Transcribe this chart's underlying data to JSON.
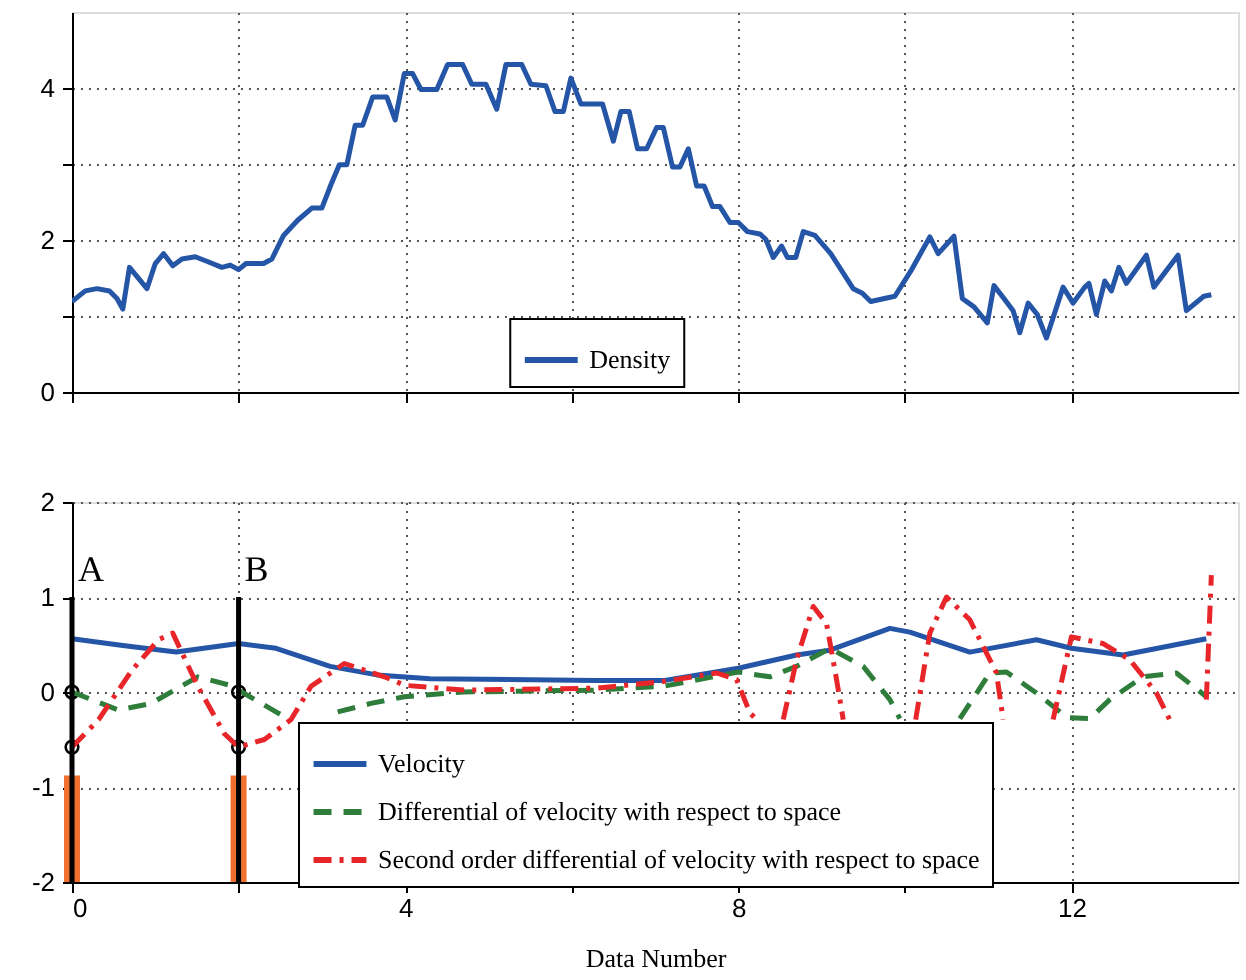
{
  "chart_data": [
    {
      "type": "line",
      "xlim": [
        0,
        14
      ],
      "ylim": [
        0,
        5
      ],
      "xticks": [
        {
          "value": 0,
          "label": null
        },
        {
          "value": 2,
          "label": null
        },
        {
          "value": 4,
          "label": null
        },
        {
          "value": 6,
          "label": null
        },
        {
          "value": 8,
          "label": null
        },
        {
          "value": 10,
          "label": null
        },
        {
          "value": 12,
          "label": null
        }
      ],
      "yticks": [
        0,
        {
          "value": 1,
          "label": null
        },
        2,
        {
          "value": 3,
          "label": null
        },
        4
      ],
      "tick_labels": "y",
      "grid": true,
      "legend": "bottom",
      "series": [
        {
          "name": "Density",
          "color": "#2455a6",
          "line_style": "solid",
          "x": [
            0,
            0.16,
            0.3,
            0.45,
            0.54,
            0.61,
            0.69,
            0.9,
            1.0,
            1.1,
            1.21,
            1.32,
            1.48,
            1.64,
            1.8,
            1.9,
            2.0,
            2.09,
            2.3,
            2.4,
            2.54,
            2.71,
            2.88,
            3.0,
            3.11,
            3.21,
            3.3,
            3.4,
            3.49,
            3.61,
            3.78,
            3.88,
            3.99,
            4.09,
            4.19,
            4.38,
            4.51,
            4.69,
            4.8,
            4.97,
            5.1,
            5.21,
            5.4,
            5.51,
            5.69,
            5.8,
            5.9,
            5.99,
            6.11,
            6.37,
            6.5,
            6.59,
            6.69,
            6.79,
            6.9,
            7.02,
            7.1,
            7.21,
            7.3,
            7.4,
            7.5,
            7.59,
            7.69,
            7.78,
            7.9,
            8.0,
            8.11,
            8.26,
            8.33,
            8.42,
            8.52,
            8.59,
            8.69,
            8.78,
            8.92,
            9.11,
            9.38,
            9.49,
            9.59,
            9.88,
            10.07,
            10.3,
            10.4,
            10.59,
            10.69,
            10.83,
            10.99,
            11.07,
            11.19,
            11.3,
            11.38,
            11.48,
            11.59,
            11.7,
            11.9,
            12.02,
            12.16,
            12.21,
            12.3,
            12.4,
            12.48,
            12.57,
            12.66,
            12.9,
            12.99,
            13.28,
            13.38,
            13.59,
            13.68
          ],
          "values": [
            1.19,
            1.33,
            1.36,
            1.33,
            1.23,
            1.09,
            1.64,
            1.36,
            1.69,
            1.82,
            1.66,
            1.75,
            1.78,
            1.71,
            1.64,
            1.67,
            1.61,
            1.69,
            1.69,
            1.75,
            2.06,
            2.26,
            2.42,
            2.42,
            2.73,
            2.99,
            2.99,
            3.51,
            3.51,
            3.88,
            3.88,
            3.58,
            4.19,
            4.19,
            3.98,
            3.98,
            4.31,
            4.31,
            4.05,
            4.05,
            3.72,
            4.31,
            4.31,
            4.05,
            4.03,
            3.69,
            3.69,
            4.13,
            3.79,
            3.79,
            3.3,
            3.69,
            3.69,
            3.2,
            3.2,
            3.48,
            3.48,
            2.96,
            2.96,
            3.2,
            2.71,
            2.71,
            2.44,
            2.44,
            2.23,
            2.23,
            2.11,
            2.08,
            2.01,
            1.77,
            1.92,
            1.77,
            1.77,
            2.11,
            2.06,
            1.82,
            1.36,
            1.3,
            1.19,
            1.26,
            1.59,
            2.04,
            1.82,
            2.05,
            1.23,
            1.12,
            0.91,
            1.4,
            1.23,
            1.07,
            0.78,
            1.17,
            1.02,
            0.71,
            1.38,
            1.17,
            1.38,
            1.43,
            1.02,
            1.46,
            1.33,
            1.64,
            1.43,
            1.8,
            1.38,
            1.8,
            1.07,
            1.26,
            1.28
          ]
        }
      ]
    },
    {
      "type": "line",
      "xlim": [
        0,
        14
      ],
      "ylim": [
        -2,
        2
      ],
      "xlabel": "Data Number",
      "xticks": [
        0,
        {
          "value": 2,
          "label": null
        },
        4,
        {
          "value": 6,
          "label": null
        },
        8,
        {
          "value": 10,
          "label": null
        },
        12
      ],
      "yticks": [
        -2,
        -1,
        0,
        1,
        2
      ],
      "grid": true,
      "legend": "bottom right",
      "ref_lines": [
        {
          "axis": "x",
          "value": 0,
          "label": "A",
          "color": "#000000",
          "line_style": "solid"
        },
        {
          "axis": "x",
          "value": 2,
          "label": "B",
          "color": "#000000",
          "line_style": "solid"
        }
      ],
      "series": [
        {
          "type": "bar",
          "color": "#f07030",
          "x": [
            0,
            2
          ],
          "values": [
            1.12,
            1.12
          ],
          "base": [
            -2,
            -2
          ]
        },
        {
          "name": "Velocity",
          "type": "line",
          "color": "#2455a6",
          "line_style": "solid",
          "x": [
            0,
            0.61,
            1.25,
            2,
            2.45,
            3.1,
            3.66,
            4.3,
            6.3,
            7.1,
            8,
            8.7,
            9.1,
            9.82,
            10.06,
            10.78,
            11.58,
            12,
            12.62,
            13.62
          ],
          "values": [
            0.56,
            0.49,
            0.42,
            0.51,
            0.46,
            0.27,
            0.18,
            0.14,
            0.12,
            0.12,
            0.25,
            0.39,
            0.44,
            0.67,
            0.63,
            0.42,
            0.55,
            0.46,
            0.39,
            0.56
          ]
        },
        {
          "name": "Differential of velocity with respect to space",
          "type": "line",
          "color": "#2e7d3a",
          "line_style": "dashed",
          "x": [
            0,
            0.56,
            0.95,
            1.51,
            1.9,
            2.47,
            2.63,
            2.9,
            3.19,
            3.59,
            3.99,
            4.7,
            6.3,
            7.1,
            8,
            8.38,
            8.7,
            9.1,
            9.5,
            9.82,
            9.94,
            10.3,
            10.66,
            11.02,
            11.22,
            11.58,
            11.95,
            12.22,
            12.46,
            12.86,
            13.26,
            13.62
          ],
          "values": [
            0,
            -0.19,
            -0.12,
            0.16,
            0.07,
            -0.22,
            -0.29,
            null,
            -0.21,
            -0.12,
            -0.05,
            0,
            0.02,
            0.06,
            0.21,
            0.16,
            0.27,
            0.46,
            0.27,
            -0.08,
            -0.28,
            null,
            -0.28,
            0.2,
            0.21,
            -0.01,
            -0.27,
            -0.28,
            -0.08,
            0.16,
            0.2,
            -0.05
          ]
        },
        {
          "name": "Second order differential of velocity with respect to space",
          "type": "line",
          "color": "#e8262a",
          "line_style": "dashdot",
          "x": [
            0,
            0.32,
            0.72,
            1.04,
            1.21,
            1.51,
            1.83,
            2,
            2.31,
            2.63,
            2.87,
            3.27,
            3.75,
            4,
            4.7,
            6.3,
            7.1,
            7.74,
            7.98,
            8.14,
            8.22,
            8.4,
            8.54,
            8.7,
            8.9,
            9.06,
            9.18,
            9.26,
            9.7,
            10.13,
            10.3,
            10.5,
            10.78,
            11.1,
            11.18,
            11.5,
            11.78,
            12,
            12.38,
            12.7,
            13.02,
            13.18,
            13.4,
            13.62,
            13.68
          ],
          "values": [
            -0.58,
            -0.29,
            0.23,
            0.55,
            0.62,
            0.06,
            -0.44,
            -0.58,
            -0.5,
            -0.29,
            0.06,
            0.3,
            0.16,
            0.07,
            0.02,
            0.04,
            0.11,
            0.2,
            0.13,
            -0.22,
            -0.29,
            null,
            -0.29,
            0.34,
            0.9,
            0.72,
            0.13,
            -0.29,
            null,
            -0.29,
            0.62,
            1.0,
            0.76,
            0.2,
            -0.29,
            null,
            -0.29,
            0.58,
            0.51,
            0.34,
            -0.01,
            -0.29,
            null,
            -0.08,
            1.23
          ]
        },
        {
          "type": "scatter",
          "color": "#000000",
          "marker": "circle",
          "x": [
            0,
            0,
            2,
            2
          ],
          "values": [
            0,
            -0.58,
            0,
            -0.58
          ]
        }
      ]
    }
  ]
}
